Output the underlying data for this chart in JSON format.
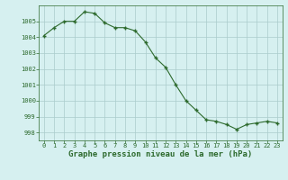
{
  "x": [
    0,
    1,
    2,
    3,
    4,
    5,
    6,
    7,
    8,
    9,
    10,
    11,
    12,
    13,
    14,
    15,
    16,
    17,
    18,
    19,
    20,
    21,
    22,
    23
  ],
  "y": [
    1004.1,
    1004.6,
    1005.0,
    1005.0,
    1005.6,
    1005.5,
    1004.9,
    1004.6,
    1004.6,
    1004.4,
    1003.7,
    1002.7,
    1002.1,
    1001.0,
    1000.0,
    999.4,
    998.8,
    998.7,
    998.5,
    998.2,
    998.5,
    998.6,
    998.7,
    998.6
  ],
  "line_color": "#2d6a2d",
  "marker": "+",
  "marker_color": "#2d6a2d",
  "background_color": "#d6f0f0",
  "grid_color": "#aacccc",
  "xlabel": "Graphe pression niveau de la mer (hPa)",
  "xlabel_color": "#2d6a2d",
  "tick_color": "#2d6a2d",
  "ylabel_ticks": [
    998,
    999,
    1000,
    1001,
    1002,
    1003,
    1004,
    1005
  ],
  "xlim": [
    -0.5,
    23.5
  ],
  "ylim": [
    997.5,
    1006.0
  ],
  "xticks": [
    0,
    1,
    2,
    3,
    4,
    5,
    6,
    7,
    8,
    9,
    10,
    11,
    12,
    13,
    14,
    15,
    16,
    17,
    18,
    19,
    20,
    21,
    22,
    23
  ],
  "tick_fontsize": 5.0,
  "xlabel_fontsize": 6.5,
  "linewidth": 0.8,
  "markersize": 3.5
}
